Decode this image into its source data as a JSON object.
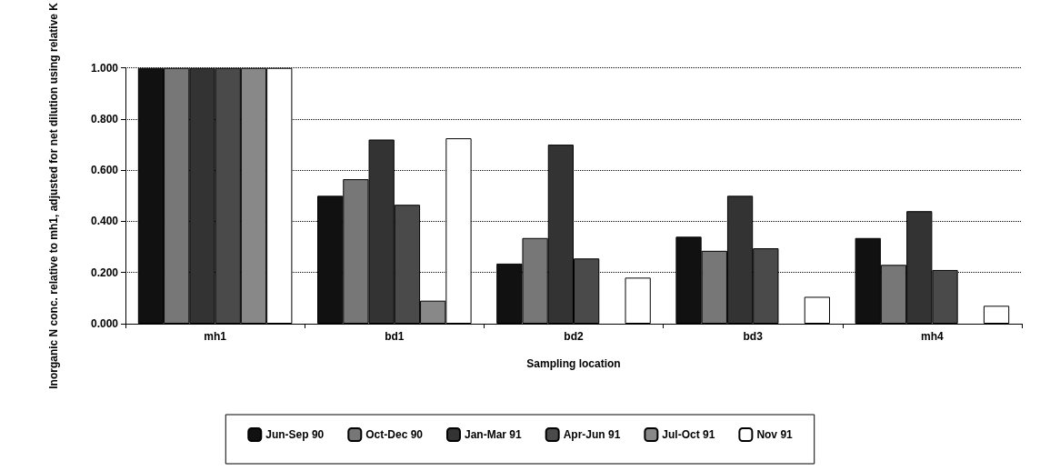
{
  "chart_data": {
    "type": "bar",
    "xlabel": "Sampling location",
    "ylabel": "Inorganic N conc. relative to mh1, adjusted for net dilution using relative K",
    "categories": [
      "mh1",
      "bd1",
      "bd2",
      "bd3",
      "mh4"
    ],
    "series": [
      {
        "name": "Jun-Sep 90",
        "color": "#111111",
        "values": [
          1.0,
          0.5,
          0.235,
          0.34,
          0.335
        ]
      },
      {
        "name": "Oct-Dec 90",
        "color": "#777777",
        "values": [
          1.0,
          0.565,
          0.335,
          0.285,
          0.23
        ]
      },
      {
        "name": "Jan-Mar 91",
        "color": "#333333",
        "values": [
          1.0,
          0.72,
          0.7,
          0.5,
          0.44
        ]
      },
      {
        "name": "Apr-Jun 91",
        "color": "#4a4a4a",
        "values": [
          1.0,
          0.465,
          0.255,
          0.295,
          0.21
        ]
      },
      {
        "name": "Jul-Oct 91",
        "color": "#888888",
        "values": [
          1.0,
          0.09,
          null,
          null,
          null
        ]
      },
      {
        "name": "Nov 91",
        "color": "#ffffff",
        "values": [
          1.0,
          0.725,
          0.18,
          0.105,
          0.07
        ]
      }
    ],
    "ylim": [
      0,
      1
    ],
    "yticks": [
      {
        "value": 0,
        "label": "0.000"
      },
      {
        "value": 0.2,
        "label": "0.200"
      },
      {
        "value": 0.4,
        "label": "0.400"
      },
      {
        "value": 0.6,
        "label": "0.600"
      },
      {
        "value": 0.8,
        "label": "0.800"
      },
      {
        "value": 1,
        "label": "1.000"
      }
    ],
    "grid": "y",
    "legend": "bottom"
  }
}
